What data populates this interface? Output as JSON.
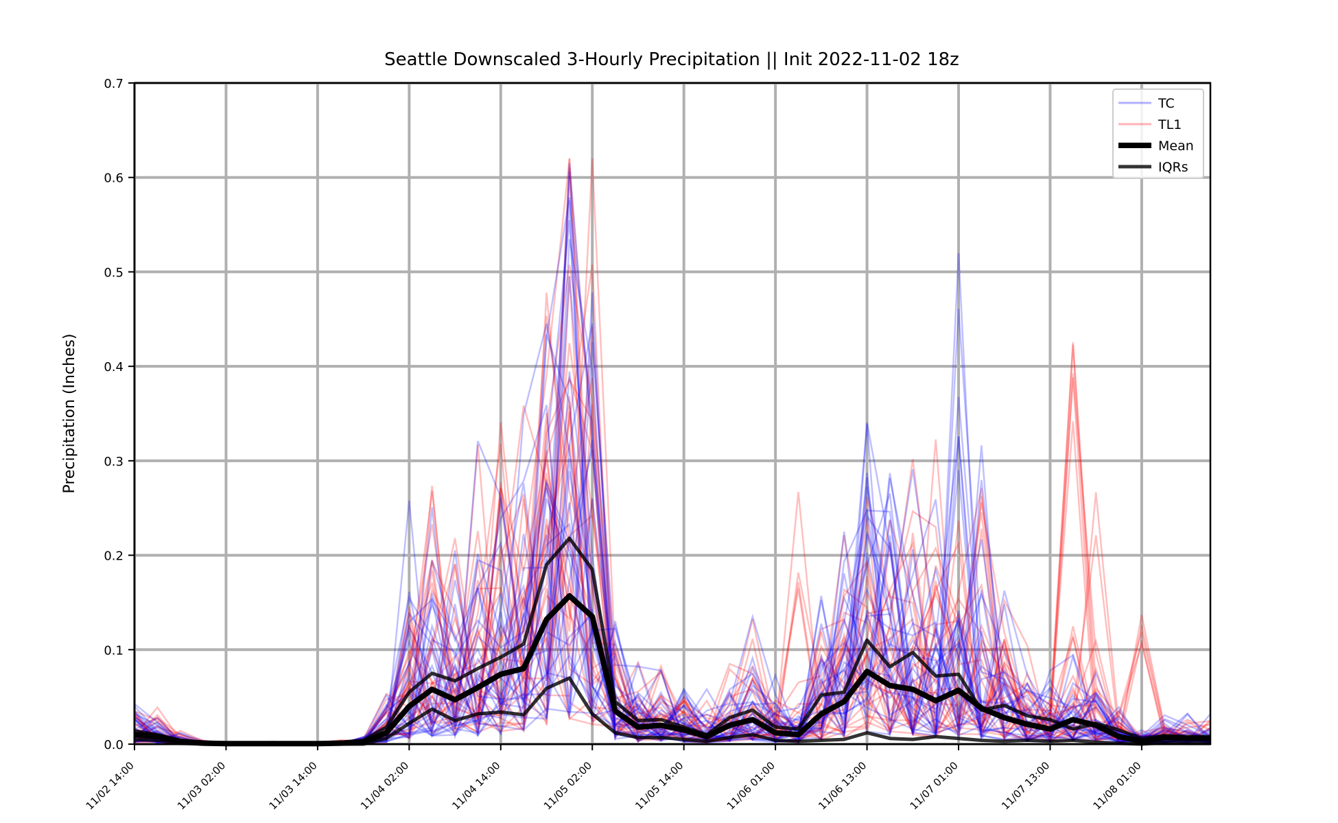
{
  "chart_data": {
    "type": "line",
    "title": "Seattle Downscaled 3-Hourly Precipitation || Init 2022-11-02 18z",
    "xlabel": "",
    "ylabel": "Precipitation (Inches)",
    "ylim": [
      0,
      0.7
    ],
    "yticks": [
      "0.0",
      "0.1",
      "0.2",
      "0.3",
      "0.4",
      "0.5",
      "0.6",
      "0.7"
    ],
    "xticks": [
      "11/02 14:00",
      "11/03 02:00",
      "11/03 14:00",
      "11/04 02:00",
      "11/04 14:00",
      "11/05 02:00",
      "11/05 14:00",
      "11/06 01:00",
      "11/06 13:00",
      "11/07 01:00",
      "11/07 13:00",
      "11/08 01:00"
    ],
    "xrange_steps": [
      0,
      47
    ],
    "grid": true,
    "legend_position": "top-right",
    "legend": [
      {
        "label": "TC",
        "color": "#0000ff",
        "style": "thin-transparent"
      },
      {
        "label": "TL1",
        "color": "#ff0000",
        "style": "thin-transparent"
      },
      {
        "label": "Mean",
        "color": "#000000",
        "style": "thick"
      },
      {
        "label": "IQRs",
        "color": "#000000",
        "style": "medium-transparent"
      }
    ],
    "colors": {
      "tc": "#0000ff",
      "tl1": "#ff0000",
      "mean": "#000000",
      "iqr": "#000000",
      "grid": "#b0b0b0"
    },
    "series": [
      {
        "name": "Mean",
        "role": "mean",
        "values": [
          0.01,
          0.008,
          0.003,
          0.001,
          0.0005,
          0.0005,
          0.0005,
          0.0005,
          0.0005,
          0.001,
          0.002,
          0.012,
          0.04,
          0.058,
          0.047,
          0.06,
          0.074,
          0.08,
          0.132,
          0.157,
          0.135,
          0.035,
          0.018,
          0.02,
          0.015,
          0.008,
          0.02,
          0.026,
          0.012,
          0.01,
          0.032,
          0.045,
          0.077,
          0.062,
          0.058,
          0.046,
          0.057,
          0.038,
          0.028,
          0.021,
          0.016,
          0.026,
          0.02,
          0.008,
          0.003,
          0.007,
          0.006,
          0.006
        ]
      },
      {
        "name": "IQRs",
        "role": "iqr",
        "values": [
          0.014,
          0.01,
          0.004,
          0.002,
          0.001,
          0.001,
          0.001,
          0.001,
          0.001,
          0.002,
          0.004,
          0.018,
          0.055,
          0.075,
          0.067,
          0.08,
          0.092,
          0.106,
          0.19,
          0.218,
          0.185,
          0.045,
          0.025,
          0.026,
          0.018,
          0.01,
          0.028,
          0.036,
          0.018,
          0.016,
          0.052,
          0.055,
          0.11,
          0.082,
          0.097,
          0.072,
          0.074,
          0.036,
          0.041,
          0.03,
          0.026,
          0.016,
          0.022,
          0.015,
          0.006,
          0.009,
          0.008,
          0.008
        ]
      },
      {
        "name": "IQRs",
        "role": "iqr",
        "values": [
          0.005,
          0.004,
          0.001,
          0.0,
          0.0,
          0.0,
          0.0,
          0.0,
          0.0,
          0.0,
          0.0,
          0.006,
          0.022,
          0.037,
          0.025,
          0.032,
          0.034,
          0.031,
          0.059,
          0.07,
          0.032,
          0.012,
          0.007,
          0.007,
          0.005,
          0.003,
          0.007,
          0.01,
          0.004,
          0.003,
          0.004,
          0.005,
          0.012,
          0.006,
          0.005,
          0.008,
          0.006,
          0.004,
          0.003,
          0.004,
          0.003,
          0.004,
          0.002,
          0.001,
          0.0,
          0.002,
          0.001,
          0.001
        ]
      }
    ]
  }
}
